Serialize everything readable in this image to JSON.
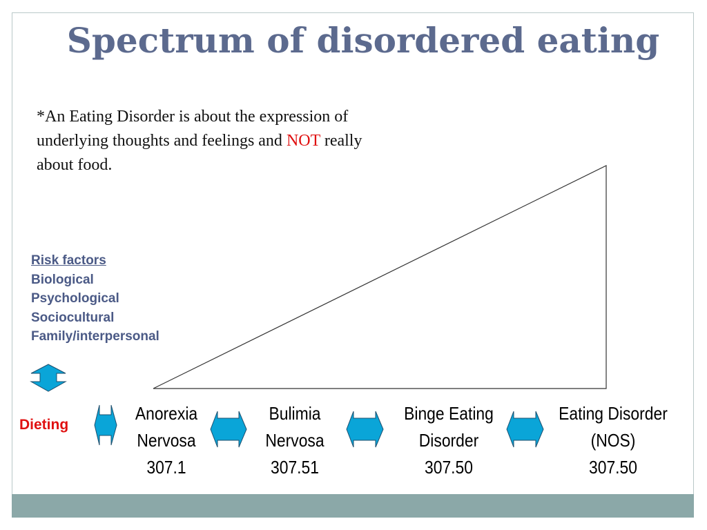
{
  "slide": {
    "title": "Spectrum of disordered eating",
    "note": {
      "part1": "*An Eating Disorder is about the expression of underlying thoughts and feelings and ",
      "highlight": "NOT",
      "part2": " really about food."
    },
    "risk_factors": {
      "heading": "Risk factors",
      "items": [
        "Biological",
        "Psychological",
        "Sociocultural",
        "Family/interpersonal"
      ]
    },
    "dieting_label": "Dieting",
    "categories": [
      {
        "line1": "Anorexia",
        "line2": "Nervosa",
        "code": "307.1"
      },
      {
        "line1": "Bulimia",
        "line2": "Nervosa",
        "code": "307.51"
      },
      {
        "line1": "Binge Eating",
        "line2": "Disorder",
        "code": "307.50"
      },
      {
        "line1": "Eating Disorder",
        "line2": "(NOS)",
        "code": "307.50"
      }
    ],
    "colors": {
      "title": "#5c6a8e",
      "risk_text": "#4b5a86",
      "highlight": "#e01010",
      "arrow_fill": "#0aa5d8",
      "footer": "#8ba8a8"
    }
  }
}
